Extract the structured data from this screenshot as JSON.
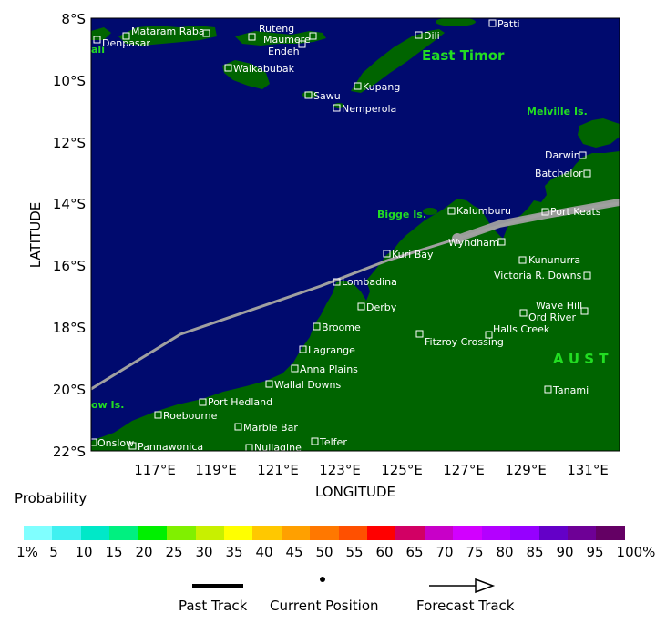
{
  "map": {
    "lat_labels": [
      "8°S",
      "10°S",
      "12°S",
      "14°S",
      "16°S",
      "18°S",
      "20°S",
      "22°S"
    ],
    "lon_labels": [
      "117°E",
      "119°E",
      "121°E",
      "123°E",
      "125°E",
      "127°E",
      "129°E",
      "131°E"
    ],
    "ylabel": "LATITUDE",
    "xlabel": "LONGITUDE",
    "colors": {
      "ocean": "#000a6e",
      "land": "#006400",
      "track": "#a0a0a0"
    },
    "regions": {
      "east_timor": "East Timor",
      "melville": "Melville Is.",
      "bigge": "Bigge Is.",
      "australia": "A U S T",
      "barrow": "ow Is.",
      "bali": "ali"
    },
    "places": {
      "denpasar": "Denpasar",
      "mataram": "Mataram Raba",
      "ruteng": "Ruteng",
      "maumere": "Maumere",
      "ende": "Endeh",
      "dili": "Dili",
      "patti": "Patti",
      "waikabubak": "Waikabubak",
      "kupang": "Kupang",
      "sawu": "Sawu",
      "nemperola": "Nemperola",
      "darwin": "Darwin",
      "batchelor": "Batchelor",
      "kalumburu": "Kalumburu",
      "port_keats": "Port Keats",
      "wyndham": "Wyndham",
      "kuri_bay": "Kuri Bay",
      "kununurra": "Kununurra",
      "victoria_downs": "Victoria R. Downs",
      "lombadina": "Lombadina",
      "derby": "Derby",
      "wave_hill": "Wave Hill",
      "ord_river": "Ord River",
      "broome": "Broome",
      "halls_creek": "Halls Creek",
      "fitzroy": "Fitzroy Crossing",
      "lagrange": "Lagrange",
      "anna_plains": "Anna Plains",
      "wallal": "Wallal Downs",
      "tanami": "Tanami",
      "port_hedland": "Port Hedland",
      "roebourne": "Roebourne",
      "marble_bar": "Marble Bar",
      "onslow": "Onslow",
      "pannawonica": "Pannawonica",
      "nullagine": "Nullagine",
      "telfer": "Telfer"
    }
  },
  "legend": {
    "title": "Probability",
    "labels": [
      "1%",
      "5",
      "10",
      "15",
      "20",
      "25",
      "30",
      "35",
      "40",
      "45",
      "50",
      "55",
      "60",
      "65",
      "70",
      "75",
      "80",
      "85",
      "90",
      "95",
      "100%"
    ],
    "colors": [
      "#80ffff",
      "#40f0f0",
      "#00e8c8",
      "#00f080",
      "#00f000",
      "#80f000",
      "#c8f000",
      "#ffff00",
      "#ffc800",
      "#ffa000",
      "#ff7800",
      "#ff5000",
      "#ff0000",
      "#d20064",
      "#c800c8",
      "#d200ff",
      "#b400ff",
      "#9600ff",
      "#6400c8",
      "#6e0096",
      "#640064"
    ]
  },
  "key": {
    "past_track": "Past Track",
    "current_position": "Current Position",
    "forecast_track": "Forecast Track"
  }
}
